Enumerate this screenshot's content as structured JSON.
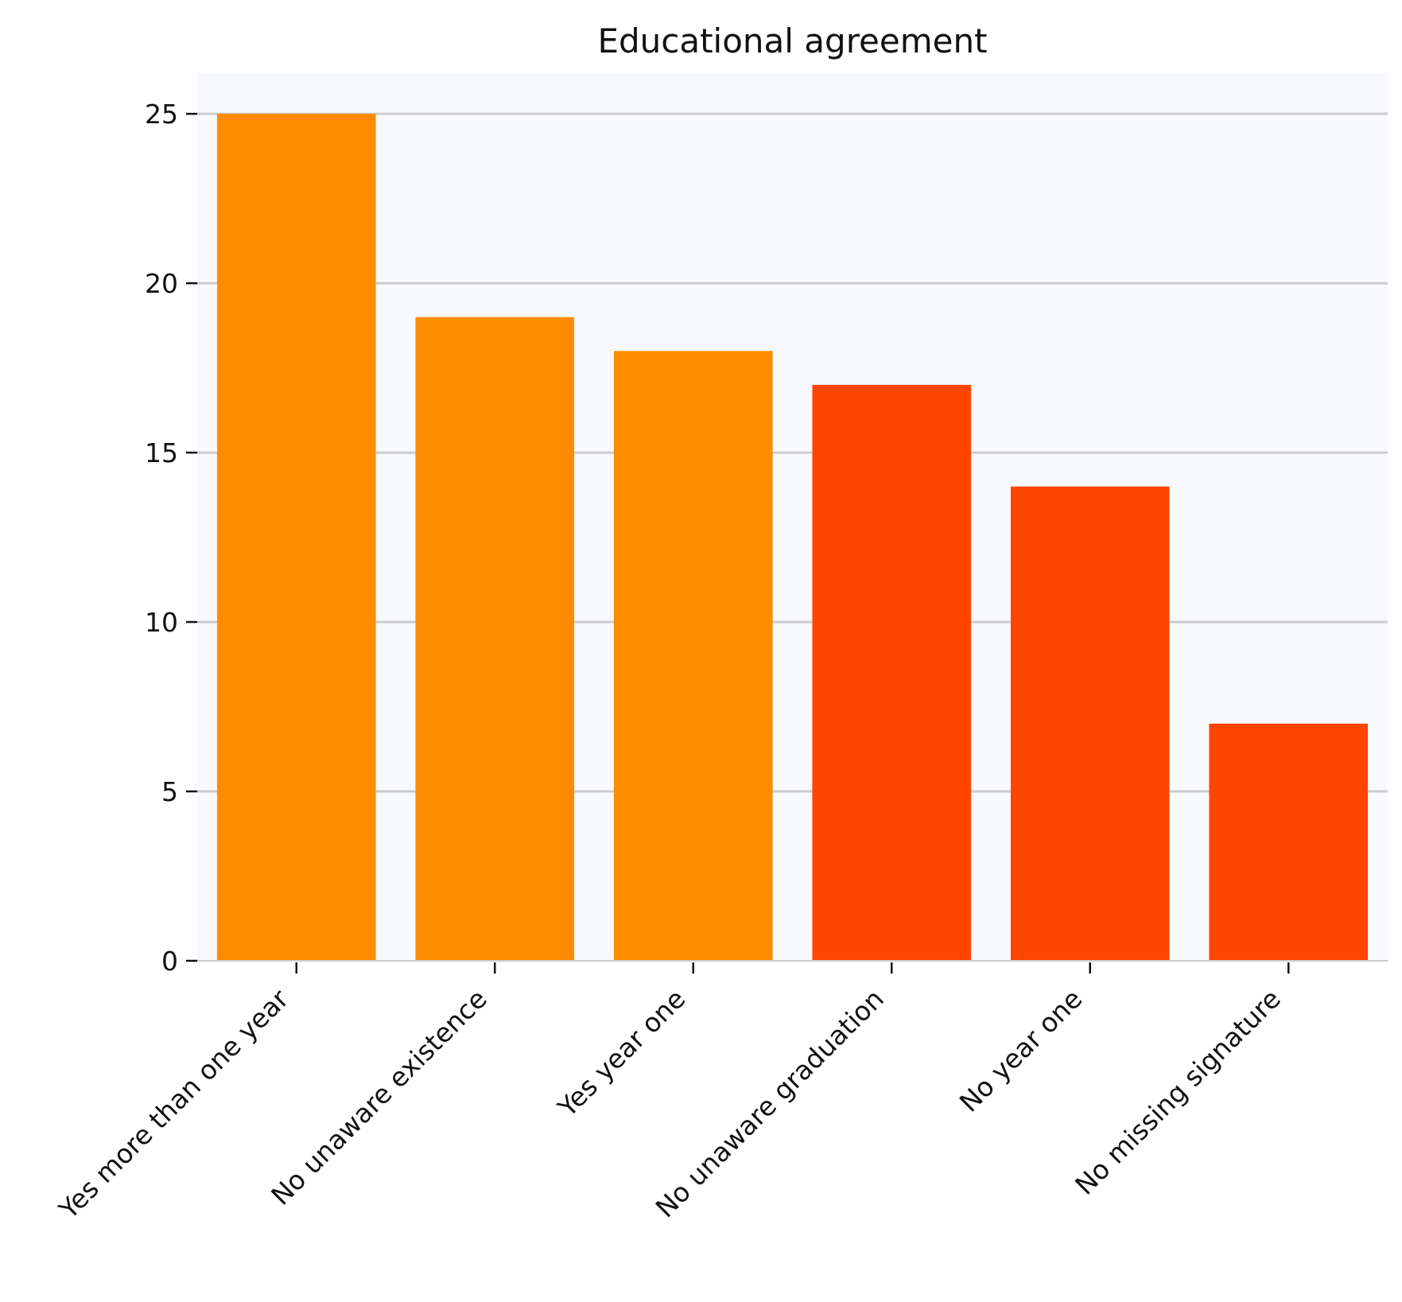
{
  "chart_data": {
    "type": "bar",
    "title": "Educational agreement",
    "xlabel": "",
    "ylabel": "",
    "categories": [
      "Yes more than one year",
      "No unaware existence",
      "Yes year one",
      "No unaware graduation",
      "No year one",
      "No missing signature"
    ],
    "values": [
      25,
      19,
      18,
      17,
      14,
      7
    ],
    "colors": [
      "#ff8c00",
      "#ff8c00",
      "#ff8c00",
      "#ff4500",
      "#ff4500",
      "#ff4500"
    ],
    "ylim": [
      0,
      26.2
    ],
    "yticks": [
      0,
      5,
      10,
      15,
      20,
      25
    ],
    "grid": "horizontal",
    "background": "#f7f9fd",
    "grid_color": "#cccccc"
  }
}
